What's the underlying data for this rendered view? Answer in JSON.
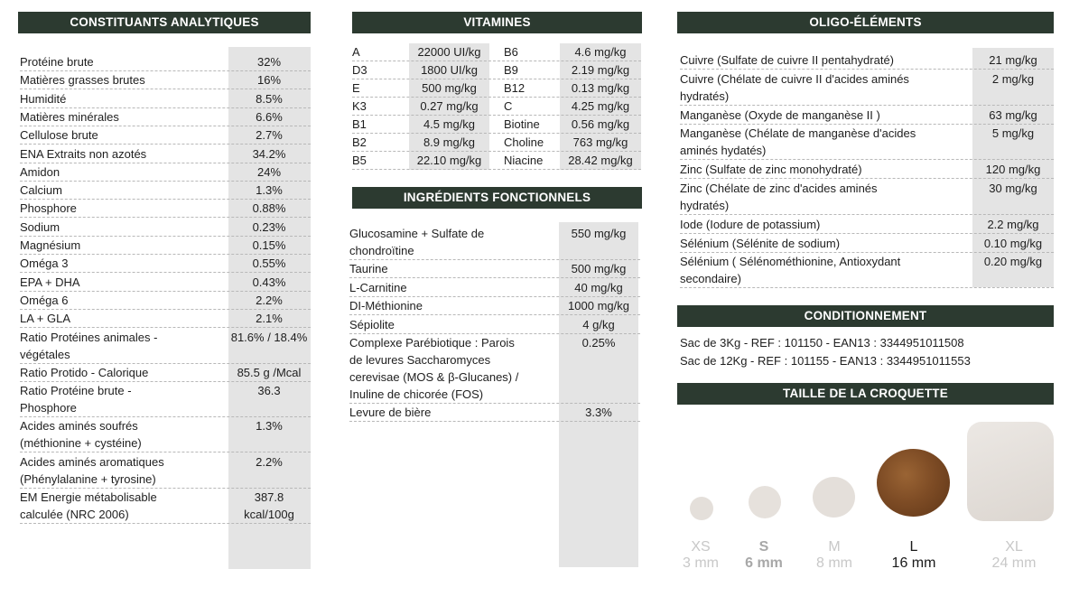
{
  "analytical": {
    "title": "CONSTITUANTS ANALYTIQUES",
    "rows": [
      {
        "label": [
          "Protéine brute"
        ],
        "value": [
          "32%"
        ]
      },
      {
        "label": [
          "Matières grasses brutes"
        ],
        "value": [
          "16%"
        ]
      },
      {
        "label": [
          "Humidité"
        ],
        "value": [
          "8.5%"
        ]
      },
      {
        "label": [
          "Matières minérales"
        ],
        "value": [
          "6.6%"
        ]
      },
      {
        "label": [
          "Cellulose brute"
        ],
        "value": [
          "2.7%"
        ]
      },
      {
        "label": [
          "ENA Extraits non azotés"
        ],
        "value": [
          "34.2%"
        ]
      },
      {
        "label": [
          "Amidon"
        ],
        "value": [
          "24%"
        ]
      },
      {
        "label": [
          "Calcium"
        ],
        "value": [
          "1.3%"
        ]
      },
      {
        "label": [
          "Phosphore"
        ],
        "value": [
          "0.88%"
        ]
      },
      {
        "label": [
          "Sodium"
        ],
        "value": [
          "0.23%"
        ]
      },
      {
        "label": [
          "Magnésium"
        ],
        "value": [
          "0.15%"
        ]
      },
      {
        "label": [
          "Oméga 3"
        ],
        "value": [
          "0.55%"
        ]
      },
      {
        "label": [
          "EPA + DHA"
        ],
        "value": [
          "0.43%"
        ]
      },
      {
        "label": [
          "Oméga 6"
        ],
        "value": [
          "2.2%"
        ]
      },
      {
        "label": [
          "LA + GLA"
        ],
        "value": [
          "2.1%"
        ]
      },
      {
        "label": [
          "Ratio Protéines animales -",
          "végétales"
        ],
        "value": [
          "81.6% / 18.4%"
        ]
      },
      {
        "label": [
          "Ratio Protido - Calorique"
        ],
        "value": [
          "85.5 g /Mcal"
        ]
      },
      {
        "label": [
          "Ratio Protéine brute -",
          "Phosphore"
        ],
        "value": [
          "36.3"
        ]
      },
      {
        "label": [
          "Acides aminés soufrés",
          "(méthionine + cystéine)"
        ],
        "value": [
          "1.3%"
        ]
      },
      {
        "label": [
          "Acides aminés aromatiques",
          "(Phénylalanine + tyrosine)"
        ],
        "value": [
          "2.2%"
        ]
      },
      {
        "label": [
          "EM Energie métabolisable",
          "calculée (NRC 2006)"
        ],
        "value": [
          "387.8",
          "kcal/100g"
        ]
      }
    ]
  },
  "vitamins": {
    "title": "VITAMINES",
    "rows": [
      {
        "n1": "A",
        "v1": "22000 UI/kg",
        "n2": "B6",
        "v2": "4.6 mg/kg"
      },
      {
        "n1": "D3",
        "v1": "1800 UI/kg",
        "n2": "B9",
        "v2": "2.19 mg/kg"
      },
      {
        "n1": "E",
        "v1": "500 mg/kg",
        "n2": "B12",
        "v2": "0.13 mg/kg"
      },
      {
        "n1": "K3",
        "v1": "0.27 mg/kg",
        "n2": "C",
        "v2": "4.25 mg/kg"
      },
      {
        "n1": "B1",
        "v1": "4.5 mg/kg",
        "n2": "Biotine",
        "v2": "0.56 mg/kg"
      },
      {
        "n1": "B2",
        "v1": "8.9 mg/kg",
        "n2": "Choline",
        "v2": "763 mg/kg"
      },
      {
        "n1": "B5",
        "v1": "22.10 mg/kg",
        "n2": "Niacine",
        "v2": "28.42 mg/kg"
      }
    ]
  },
  "functional": {
    "title": "INGRÉDIENTS FONCTIONNELS",
    "rows": [
      {
        "label": [
          "Glucosamine + Sulfate de",
          "chondroïtine"
        ],
        "value": [
          "550 mg/kg"
        ]
      },
      {
        "label": [
          "Taurine"
        ],
        "value": [
          "500 mg/kg"
        ]
      },
      {
        "label": [
          "L-Carnitine"
        ],
        "value": [
          "40 mg/kg"
        ]
      },
      {
        "label": [
          "DI-Méthionine"
        ],
        "value": [
          "1000 mg/kg"
        ]
      },
      {
        "label": [
          "Sépiolite"
        ],
        "value": [
          "4 g/kg"
        ]
      },
      {
        "label": [
          "Complexe Parébiotique : Parois",
          "de levures Saccharomyces",
          "cerevisae (MOS & β-Glucanes) /",
          "Inuline de chicorée (FOS)"
        ],
        "value": [
          "0.25%"
        ]
      },
      {
        "label": [
          "Levure de bière"
        ],
        "value": [
          "3.3%"
        ]
      }
    ]
  },
  "trace": {
    "title": "OLIGO-ÉLÉMENTS",
    "rows": [
      {
        "label": [
          "Cuivre (Sulfate de cuivre II pentahydraté)"
        ],
        "value": [
          "21 mg/kg"
        ]
      },
      {
        "label": [
          "Cuivre (Chélate de cuivre II d'acides aminés",
          "hydratés)"
        ],
        "value": [
          "2 mg/kg"
        ]
      },
      {
        "label": [
          "Manganèse (Oxyde de manganèse II )"
        ],
        "value": [
          "63 mg/kg"
        ]
      },
      {
        "label": [
          "Manganèse (Chélate de manganèse d'acides",
          "aminés hydatés)"
        ],
        "value": [
          "5 mg/kg"
        ]
      },
      {
        "label": [
          "Zinc (Sulfate de zinc monohydraté)"
        ],
        "value": [
          "120 mg/kg"
        ]
      },
      {
        "label": [
          "Zinc (Chélate de zinc d'acides aminés",
          "hydratés)"
        ],
        "value": [
          "30 mg/kg"
        ]
      },
      {
        "label": [
          "Iode (Iodure de potassium)"
        ],
        "value": [
          "2.2 mg/kg"
        ]
      },
      {
        "label": [
          "Sélénium (Sélénite de sodium)"
        ],
        "value": [
          "0.10 mg/kg"
        ]
      },
      {
        "label": [
          "Sélénium ( Sélénométhionine, Antioxydant",
          "secondaire)"
        ],
        "value": [
          "0.20 mg/kg"
        ]
      }
    ]
  },
  "packaging": {
    "title": "CONDITIONNEMENT",
    "lines": [
      "Sac de 3Kg - REF : 101150 - EAN13 : 3344951011508",
      "Sac de 12Kg - REF : 101155 - EAN13 : 3344951011553"
    ]
  },
  "kibble": {
    "title": "TAILLE DE LA CROQUETTE",
    "sizes": [
      {
        "label": "XS",
        "mm": "3 mm",
        "state": "dim"
      },
      {
        "label": "S",
        "mm": "6 mm",
        "state": "semi"
      },
      {
        "label": "M",
        "mm": "8 mm",
        "state": "dim"
      },
      {
        "label": "L",
        "mm": "16 mm",
        "state": "on"
      },
      {
        "label": "XL",
        "mm": "24 mm",
        "state": "dim"
      }
    ],
    "colors": {
      "pale": "#e6e1dc",
      "active": "#7a4a24"
    }
  }
}
